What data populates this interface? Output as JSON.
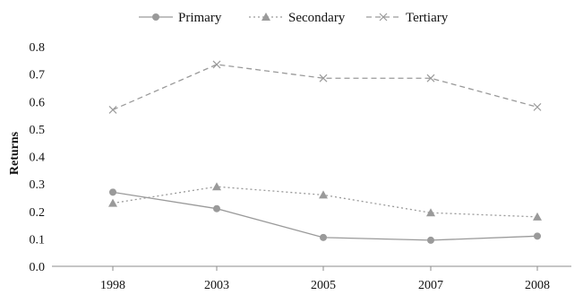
{
  "chart_data": {
    "type": "line",
    "categories": [
      "1998",
      "2003",
      "2005",
      "2007",
      "2008"
    ],
    "ylabel": "Returns",
    "xlabel": "",
    "title": "",
    "ylim": [
      0,
      0.8
    ],
    "yticks": [
      "0.0",
      "0.1",
      "0.2",
      "0.3",
      "0.4",
      "0.5",
      "0.6",
      "0.7",
      "0.8"
    ],
    "grid": false,
    "legend_position": "top-center",
    "series": [
      {
        "name": "Primary",
        "values": [
          0.27,
          0.21,
          0.105,
          0.095,
          0.11
        ],
        "marker": "circle",
        "line_style": "solid",
        "color": "#9a9a9a"
      },
      {
        "name": "Secondary",
        "values": [
          0.23,
          0.29,
          0.26,
          0.195,
          0.18
        ],
        "marker": "triangle",
        "line_style": "dotted",
        "color": "#9a9a9a"
      },
      {
        "name": "Tertiary",
        "values": [
          0.57,
          0.735,
          0.685,
          0.685,
          0.58
        ],
        "marker": "x",
        "line_style": "dashed",
        "color": "#9a9a9a"
      }
    ]
  }
}
